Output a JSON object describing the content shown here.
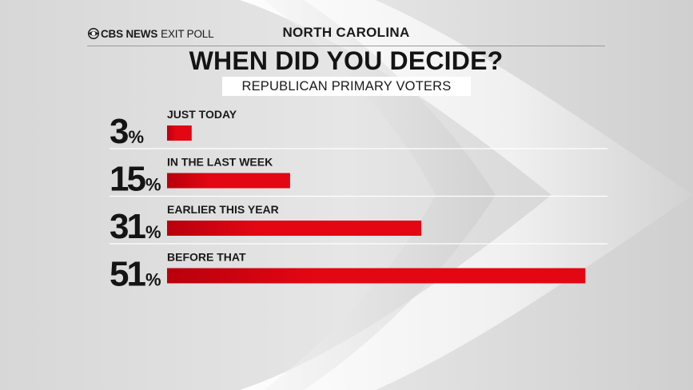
{
  "header": {
    "network": "CBS NEWS",
    "product": "EXIT POLL",
    "state": "NORTH CAROLINA",
    "title": "WHEN DID YOU DECIDE?",
    "subtitle": "REPUBLICAN PRIMARY VOTERS"
  },
  "colors": {
    "bar": "#e30613",
    "bar_dark": "#b8000c",
    "text": "#141414",
    "background": "#d9d9d9"
  },
  "chart_data": {
    "type": "bar",
    "orientation": "horizontal",
    "categories": [
      "JUST TODAY",
      "IN THE LAST WEEK",
      "EARLIER THIS YEAR",
      "BEFORE THAT"
    ],
    "values": [
      3,
      15,
      31,
      51
    ],
    "value_suffix": "%",
    "title": "WHEN DID YOU DECIDE?",
    "subtitle": "REPUBLICAN PRIMARY VOTERS",
    "xlabel": "",
    "ylabel": "",
    "grid": false,
    "legend": "none"
  }
}
